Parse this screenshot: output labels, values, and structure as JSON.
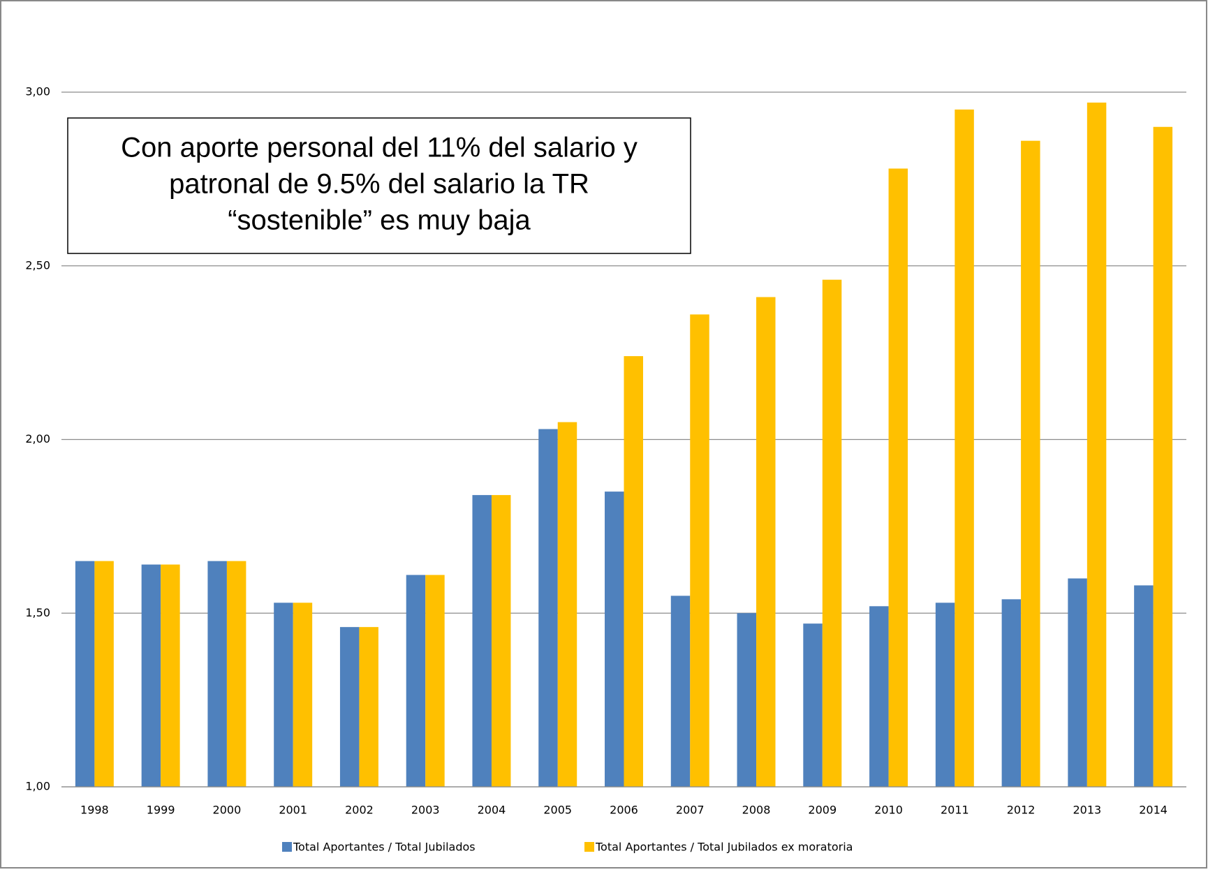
{
  "chart_data": {
    "type": "bar",
    "annotation": [
      "Con aporte personal del 11% del salario y",
      "patronal de 9.5% del salario la TR",
      "“sostenible” es muy baja"
    ],
    "categories": [
      "1998",
      "1999",
      "2000",
      "2001",
      "2002",
      "2003",
      "2004",
      "2005",
      "2006",
      "2007",
      "2008",
      "2009",
      "2010",
      "2011",
      "2012",
      "2013",
      "2014"
    ],
    "series": [
      {
        "name": "Total Aportantes / Total Jubilados",
        "color": "#4f81bd",
        "values": [
          1.65,
          1.64,
          1.65,
          1.53,
          1.46,
          1.61,
          1.84,
          2.03,
          1.85,
          1.55,
          1.5,
          1.47,
          1.52,
          1.53,
          1.54,
          1.6,
          1.58
        ]
      },
      {
        "name": "Total Aportantes / Total Jubilados ex moratoria",
        "color": "#ffc000",
        "values": [
          1.65,
          1.64,
          1.65,
          1.53,
          1.46,
          1.61,
          1.84,
          2.05,
          2.24,
          2.36,
          2.41,
          2.46,
          2.78,
          2.95,
          2.86,
          2.97,
          2.9
        ]
      }
    ],
    "ylim": [
      1,
      3
    ],
    "yticks": [
      {
        "value": 1,
        "label": "1,00"
      },
      {
        "value": 1.5,
        "label": "1,50"
      },
      {
        "value": 2,
        "label": "2,00"
      },
      {
        "value": 2.5,
        "label": "2,50"
      },
      {
        "value": 3,
        "label": "3,00"
      }
    ],
    "grid": true,
    "legend": "bottom"
  }
}
